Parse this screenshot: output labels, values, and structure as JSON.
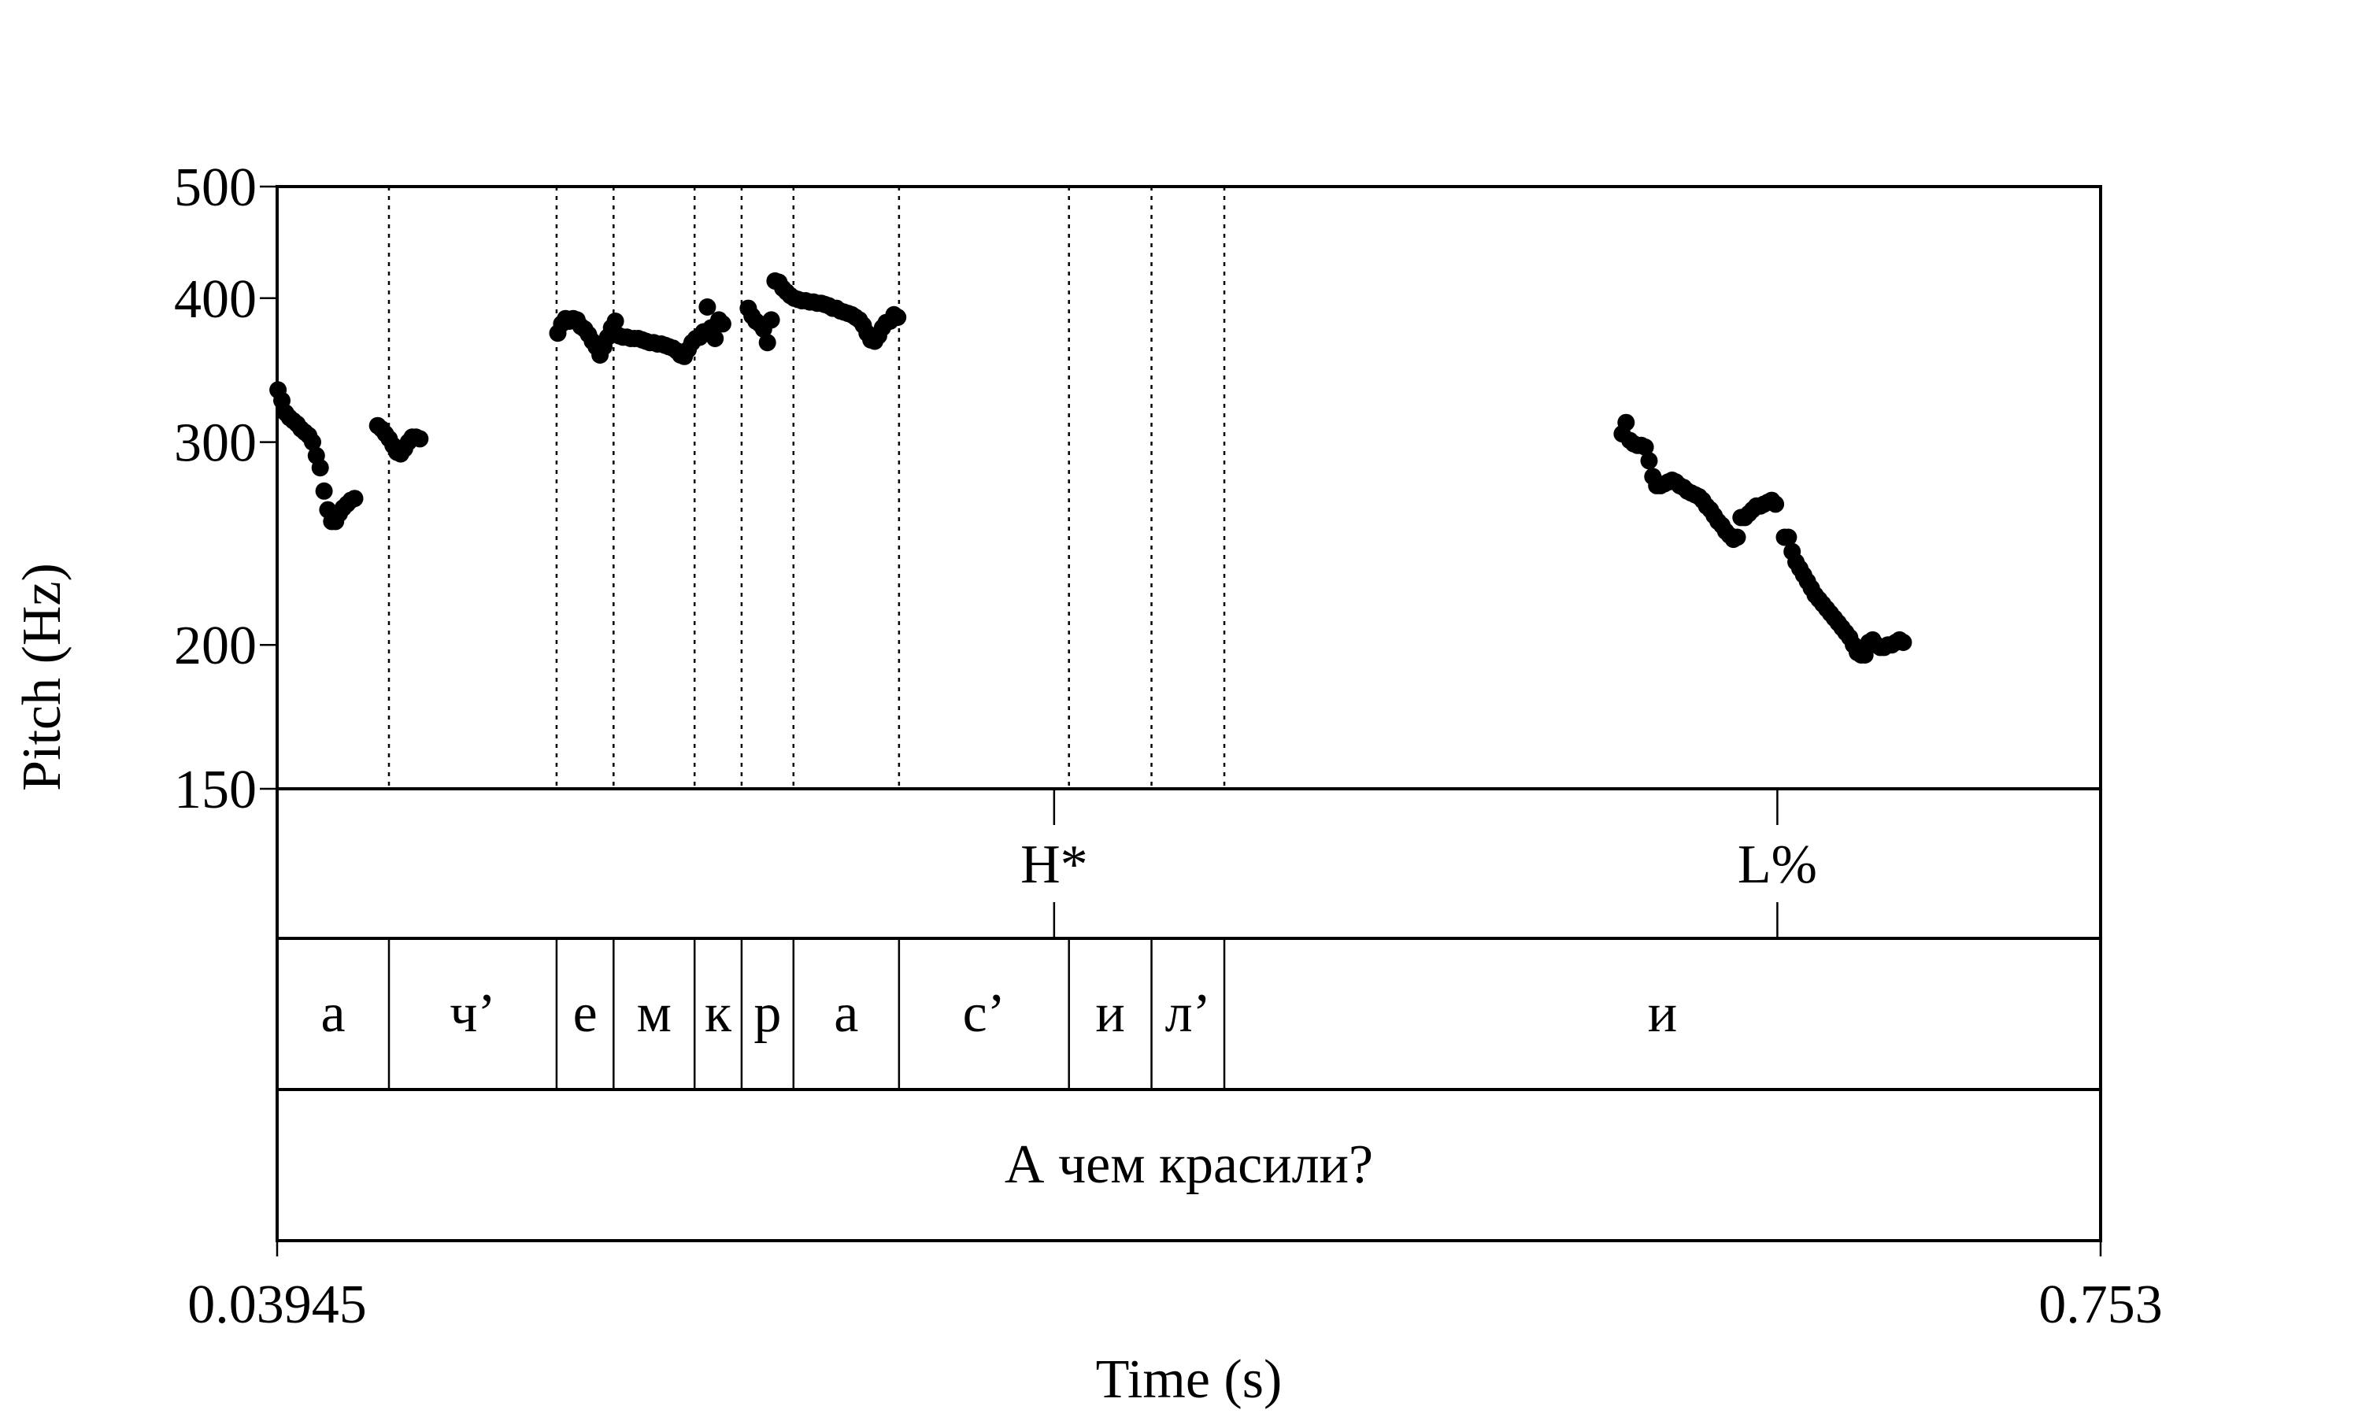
{
  "chart_data": {
    "type": "scatter",
    "xlabel": "Time (s)",
    "ylabel": "Pitch (Hz)",
    "xlim": [
      0.03945,
      0.753
    ],
    "ylim": [
      150,
      500
    ],
    "y_scale": "log",
    "x_ticks": [
      "0.03945",
      "0.753"
    ],
    "y_ticks": [
      150,
      200,
      300,
      400,
      500
    ],
    "grid": false,
    "pitch_points": [
      [
        0.0398,
        333
      ],
      [
        0.0413,
        326
      ],
      [
        0.0428,
        318
      ],
      [
        0.0443,
        315
      ],
      [
        0.0458,
        313
      ],
      [
        0.0473,
        311
      ],
      [
        0.0488,
        308
      ],
      [
        0.0503,
        306
      ],
      [
        0.0518,
        304
      ],
      [
        0.0533,
        300
      ],
      [
        0.0548,
        292
      ],
      [
        0.0563,
        285
      ],
      [
        0.0578,
        272
      ],
      [
        0.0593,
        262
      ],
      [
        0.0608,
        256
      ],
      [
        0.0623,
        256
      ],
      [
        0.0638,
        260
      ],
      [
        0.0653,
        263
      ],
      [
        0.0668,
        265
      ],
      [
        0.0683,
        267
      ],
      [
        0.0698,
        268
      ],
      [
        0.0788,
        310
      ],
      [
        0.0803,
        308
      ],
      [
        0.0818,
        305
      ],
      [
        0.0833,
        302
      ],
      [
        0.0848,
        298
      ],
      [
        0.0863,
        294
      ],
      [
        0.0878,
        293
      ],
      [
        0.0893,
        296
      ],
      [
        0.0908,
        300
      ],
      [
        0.0923,
        303
      ],
      [
        0.0938,
        303
      ],
      [
        0.0953,
        302
      ],
      [
        0.1493,
        373
      ],
      [
        0.1508,
        380
      ],
      [
        0.1523,
        384
      ],
      [
        0.1538,
        382
      ],
      [
        0.1553,
        384
      ],
      [
        0.1568,
        383
      ],
      [
        0.1583,
        378
      ],
      [
        0.1598,
        376
      ],
      [
        0.1613,
        372
      ],
      [
        0.1628,
        367
      ],
      [
        0.1643,
        363
      ],
      [
        0.1658,
        357
      ],
      [
        0.1673,
        363
      ],
      [
        0.1688,
        370
      ],
      [
        0.1703,
        377
      ],
      [
        0.1718,
        382
      ],
      [
        0.1733,
        371
      ],
      [
        0.1748,
        370
      ],
      [
        0.1763,
        370
      ],
      [
        0.1778,
        369
      ],
      [
        0.1793,
        369
      ],
      [
        0.1808,
        369
      ],
      [
        0.1823,
        368
      ],
      [
        0.1838,
        367
      ],
      [
        0.1853,
        366
      ],
      [
        0.1868,
        366
      ],
      [
        0.1883,
        365
      ],
      [
        0.1898,
        365
      ],
      [
        0.1913,
        364
      ],
      [
        0.1928,
        363
      ],
      [
        0.1943,
        362
      ],
      [
        0.1958,
        360
      ],
      [
        0.1973,
        357
      ],
      [
        0.1988,
        356
      ],
      [
        0.2003,
        361
      ],
      [
        0.2018,
        366
      ],
      [
        0.2033,
        369
      ],
      [
        0.2048,
        370
      ],
      [
        0.2063,
        374
      ],
      [
        0.2078,
        393
      ],
      [
        0.2093,
        377
      ],
      [
        0.2108,
        369
      ],
      [
        0.2123,
        383
      ],
      [
        0.2138,
        380
      ],
      [
        0.2238,
        392
      ],
      [
        0.2253,
        386
      ],
      [
        0.2268,
        382
      ],
      [
        0.2283,
        380
      ],
      [
        0.2298,
        376
      ],
      [
        0.2313,
        366
      ],
      [
        0.2328,
        383
      ],
      [
        0.2343,
        414
      ],
      [
        0.2358,
        413
      ],
      [
        0.2373,
        408
      ],
      [
        0.2388,
        405
      ],
      [
        0.2403,
        402
      ],
      [
        0.2418,
        400
      ],
      [
        0.2433,
        399
      ],
      [
        0.2448,
        398
      ],
      [
        0.2463,
        398
      ],
      [
        0.2478,
        397
      ],
      [
        0.2493,
        397
      ],
      [
        0.2508,
        396
      ],
      [
        0.2523,
        396
      ],
      [
        0.2538,
        395
      ],
      [
        0.2553,
        394
      ],
      [
        0.2568,
        392
      ],
      [
        0.2583,
        392
      ],
      [
        0.2598,
        390
      ],
      [
        0.2613,
        389
      ],
      [
        0.2628,
        388
      ],
      [
        0.2643,
        387
      ],
      [
        0.2658,
        385
      ],
      [
        0.2673,
        383
      ],
      [
        0.2688,
        379
      ],
      [
        0.2703,
        373
      ],
      [
        0.2718,
        368
      ],
      [
        0.2733,
        367
      ],
      [
        0.2748,
        371
      ],
      [
        0.2763,
        377
      ],
      [
        0.2778,
        381
      ],
      [
        0.2793,
        382
      ],
      [
        0.2808,
        387
      ],
      [
        0.2823,
        385
      ],
      [
        0.5658,
        305
      ],
      [
        0.5673,
        312
      ],
      [
        0.5688,
        301
      ],
      [
        0.5703,
        299
      ],
      [
        0.5718,
        298
      ],
      [
        0.5733,
        298
      ],
      [
        0.5748,
        297
      ],
      [
        0.5763,
        289
      ],
      [
        0.5778,
        280
      ],
      [
        0.5793,
        275
      ],
      [
        0.5808,
        275
      ],
      [
        0.5823,
        276
      ],
      [
        0.5838,
        277
      ],
      [
        0.5853,
        278
      ],
      [
        0.5868,
        277
      ],
      [
        0.5883,
        275
      ],
      [
        0.5898,
        274
      ],
      [
        0.5913,
        272
      ],
      [
        0.5928,
        271
      ],
      [
        0.5943,
        270
      ],
      [
        0.5958,
        269
      ],
      [
        0.5973,
        267
      ],
      [
        0.5988,
        264
      ],
      [
        0.6003,
        262
      ],
      [
        0.6018,
        259
      ],
      [
        0.6033,
        256
      ],
      [
        0.6048,
        254
      ],
      [
        0.6063,
        251
      ],
      [
        0.6078,
        249
      ],
      [
        0.6093,
        247
      ],
      [
        0.6108,
        248
      ],
      [
        0.6123,
        258
      ],
      [
        0.6138,
        258
      ],
      [
        0.6153,
        260
      ],
      [
        0.6168,
        262
      ],
      [
        0.6183,
        264
      ],
      [
        0.6198,
        264
      ],
      [
        0.6213,
        265
      ],
      [
        0.6228,
        266
      ],
      [
        0.6243,
        267
      ],
      [
        0.6258,
        265
      ],
      [
        0.6293,
        248
      ],
      [
        0.6308,
        248
      ],
      [
        0.6323,
        241
      ],
      [
        0.6338,
        236
      ],
      [
        0.6353,
        233
      ],
      [
        0.6368,
        230
      ],
      [
        0.6383,
        227
      ],
      [
        0.6398,
        224
      ],
      [
        0.6413,
        221
      ],
      [
        0.6428,
        219
      ],
      [
        0.6443,
        217
      ],
      [
        0.6458,
        215
      ],
      [
        0.6473,
        213
      ],
      [
        0.6488,
        211
      ],
      [
        0.6503,
        209
      ],
      [
        0.6518,
        207
      ],
      [
        0.6533,
        205
      ],
      [
        0.6548,
        203
      ],
      [
        0.6563,
        200
      ],
      [
        0.6578,
        197
      ],
      [
        0.6593,
        196
      ],
      [
        0.6608,
        196
      ],
      [
        0.6623,
        201
      ],
      [
        0.6638,
        202
      ],
      [
        0.6653,
        200
      ],
      [
        0.6668,
        199
      ],
      [
        0.6683,
        199
      ],
      [
        0.6698,
        200
      ],
      [
        0.6713,
        200
      ],
      [
        0.6728,
        201
      ],
      [
        0.6743,
        202
      ],
      [
        0.6758,
        201
      ]
    ],
    "tone_tier": {
      "marks": [
        {
          "time": 0.3435,
          "label": "H*"
        },
        {
          "time": 0.6265,
          "label": "L%"
        }
      ]
    },
    "phone_tier": {
      "intervals": [
        {
          "start": 0.03945,
          "end": 0.0832,
          "label": "а"
        },
        {
          "start": 0.0832,
          "end": 0.1488,
          "label": "ч’"
        },
        {
          "start": 0.1488,
          "end": 0.1711,
          "label": "е"
        },
        {
          "start": 0.1711,
          "end": 0.2028,
          "label": "м"
        },
        {
          "start": 0.2028,
          "end": 0.2212,
          "label": "к"
        },
        {
          "start": 0.2212,
          "end": 0.2415,
          "label": "р"
        },
        {
          "start": 0.2415,
          "end": 0.2828,
          "label": "а"
        },
        {
          "start": 0.2828,
          "end": 0.3493,
          "label": "с’"
        },
        {
          "start": 0.3493,
          "end": 0.3816,
          "label": "и"
        },
        {
          "start": 0.3816,
          "end": 0.4101,
          "label": "л’"
        },
        {
          "start": 0.4101,
          "end": 0.753,
          "label": "и"
        }
      ]
    },
    "word_tier": {
      "intervals": [
        {
          "start": 0.03945,
          "end": 0.753,
          "label": "А чем красили?"
        }
      ]
    }
  }
}
